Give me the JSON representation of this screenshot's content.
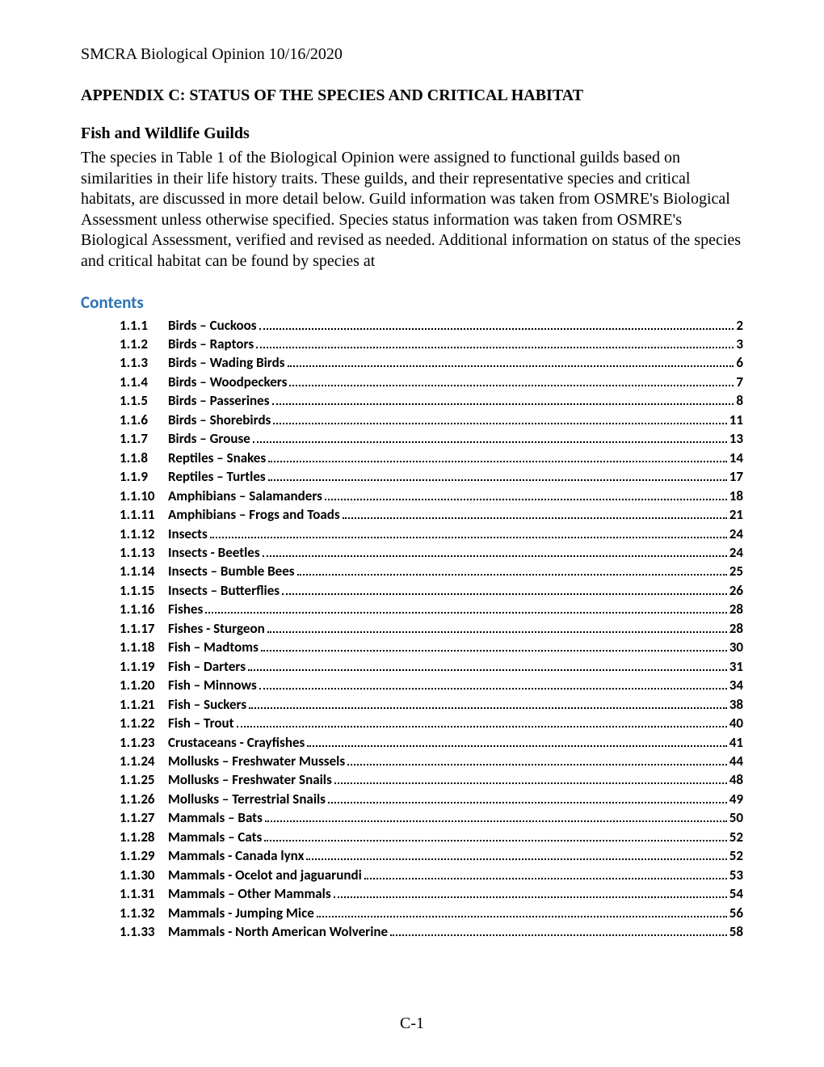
{
  "header": "SMCRA Biological Opinion 10/16/2020",
  "appendix_title": "APPENDIX C: STATUS OF THE SPECIES AND CRITICAL HABITAT",
  "section_title": "Fish and Wildlife Guilds",
  "body_paragraph": "The species in Table 1 of the Biological Opinion were assigned to functional guilds based on similarities in their life history traits. These guilds, and their representative species and critical habitats, are discussed in more detail below. Guild information was taken from OSMRE's Biological Assessment unless otherwise specified. Species status information was taken from OSMRE's Biological Assessment, verified and revised as needed. Additional information on status of the species and critical habitat can be found by species at",
  "contents_label": "Contents",
  "contents_color": "#2e74b5",
  "toc_font": "Calibri, Arial, sans-serif",
  "body_font": "\"Times New Roman\", Times, serif",
  "toc": [
    {
      "num": "1.1.1",
      "title": "Birds – Cuckoos",
      "page": "2"
    },
    {
      "num": "1.1.2",
      "title": "Birds – Raptors",
      "page": "3"
    },
    {
      "num": "1.1.3",
      "title": "Birds – Wading Birds",
      "page": "6"
    },
    {
      "num": "1.1.4",
      "title": "Birds – Woodpeckers",
      "page": "7"
    },
    {
      "num": "1.1.5",
      "title": "Birds – Passerines",
      "page": "8"
    },
    {
      "num": "1.1.6",
      "title": "Birds – Shorebirds",
      "page": "11"
    },
    {
      "num": "1.1.7",
      "title": "Birds – Grouse",
      "page": "13"
    },
    {
      "num": "1.1.8",
      "title": "Reptiles – Snakes",
      "page": "14"
    },
    {
      "num": "1.1.9",
      "title": "Reptiles – Turtles",
      "page": "17"
    },
    {
      "num": "1.1.10",
      "title": "Amphibians – Salamanders",
      "page": "18"
    },
    {
      "num": "1.1.11",
      "title": "Amphibians – Frogs and Toads",
      "page": "21"
    },
    {
      "num": "1.1.12",
      "title": "Insects",
      "page": "24"
    },
    {
      "num": "1.1.13",
      "title": "Insects - Beetles",
      "page": "24"
    },
    {
      "num": "1.1.14",
      "title": "Insects – Bumble Bees",
      "page": "25"
    },
    {
      "num": "1.1.15",
      "title": "Insects – Butterflies",
      "page": "26"
    },
    {
      "num": "1.1.16",
      "title": "Fishes",
      "page": "28"
    },
    {
      "num": "1.1.17",
      "title": "Fishes - Sturgeon",
      "page": "28"
    },
    {
      "num": "1.1.18",
      "title": "Fish – Madtoms",
      "page": "30"
    },
    {
      "num": "1.1.19",
      "title": "Fish – Darters",
      "page": "31"
    },
    {
      "num": "1.1.20",
      "title": "Fish – Minnows",
      "page": "34"
    },
    {
      "num": "1.1.21",
      "title": "Fish – Suckers",
      "page": "38"
    },
    {
      "num": "1.1.22",
      "title": "Fish – Trout",
      "page": "40"
    },
    {
      "num": "1.1.23",
      "title": "Crustaceans - Crayfishes",
      "page": "41"
    },
    {
      "num": "1.1.24",
      "title": "Mollusks – Freshwater Mussels",
      "page": "44"
    },
    {
      "num": "1.1.25",
      "title": "Mollusks – Freshwater Snails",
      "page": "48"
    },
    {
      "num": "1.1.26",
      "title": "Mollusks – Terrestrial Snails",
      "page": "49"
    },
    {
      "num": "1.1.27",
      "title": "Mammals – Bats",
      "page": "50"
    },
    {
      "num": "1.1.28",
      "title": "Mammals – Cats",
      "page": "52"
    },
    {
      "num": "1.1.29",
      "title": "Mammals - Canada lynx",
      "page": "52"
    },
    {
      "num": "1.1.30",
      "title": "Mammals - Ocelot and jaguarundi",
      "page": "53"
    },
    {
      "num": "1.1.31",
      "title": "Mammals – Other Mammals",
      "page": "54"
    },
    {
      "num": "1.1.32",
      "title": "Mammals - Jumping Mice",
      "page": "56"
    },
    {
      "num": "1.1.33",
      "title": "Mammals - North American Wolverine",
      "page": "58"
    }
  ],
  "page_number": "C-1"
}
